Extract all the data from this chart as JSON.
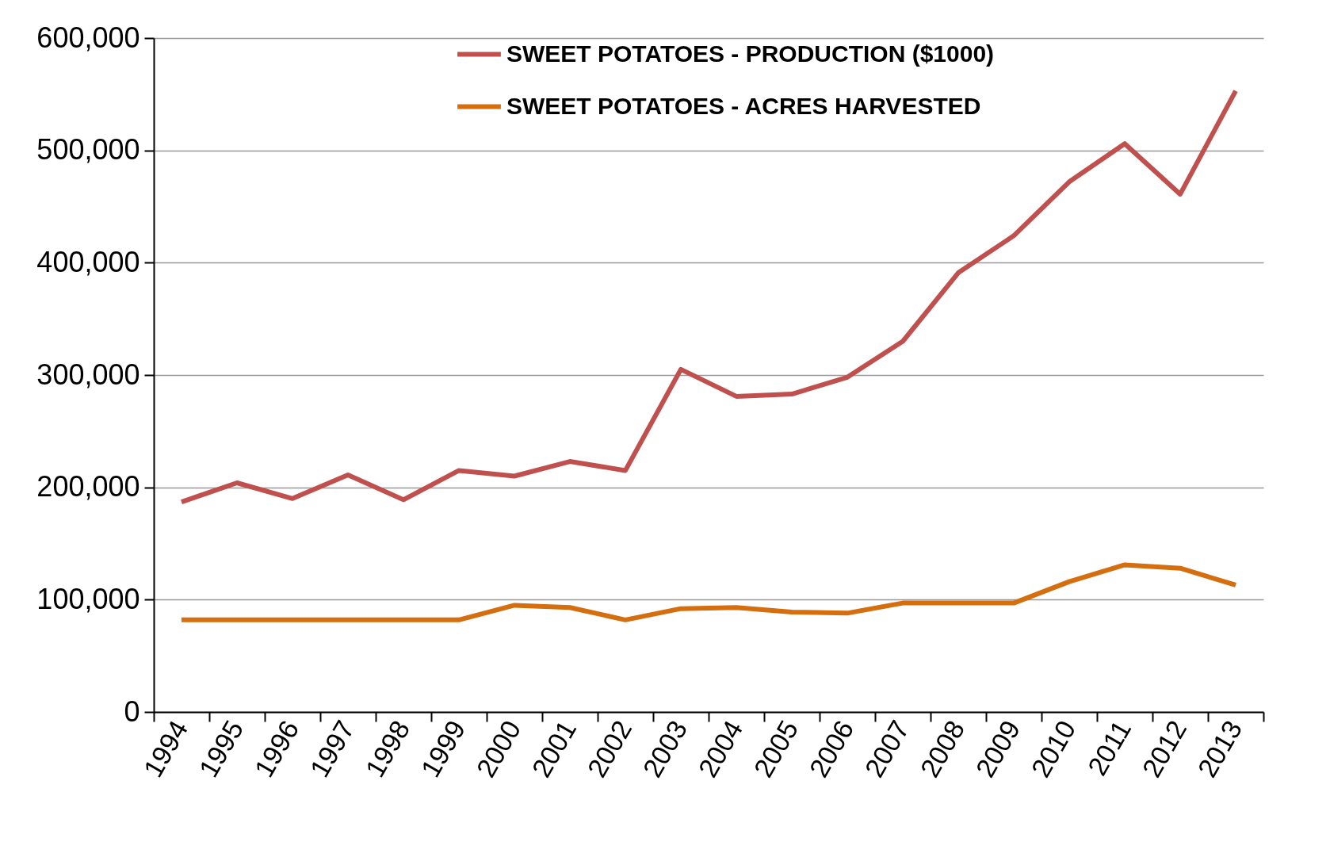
{
  "chart_data": {
    "type": "line",
    "categories": [
      "1994",
      "1995",
      "1996",
      "1997",
      "1998",
      "1999",
      "2000",
      "2001",
      "2002",
      "2003",
      "2004",
      "2005",
      "2006",
      "2007",
      "2008",
      "2009",
      "2010",
      "2011",
      "2012",
      "2013"
    ],
    "series": [
      {
        "name": "SWEET POTATOES - PRODUCTION ($1000)",
        "color": "#c0504d",
        "values": [
          187000,
          204000,
          190000,
          211000,
          189000,
          215000,
          210000,
          223000,
          215000,
          305000,
          281000,
          283000,
          298000,
          330000,
          391000,
          424000,
          472000,
          506000,
          461000,
          553000
        ]
      },
      {
        "name": "SWEET POTATOES - ACRES HARVESTED",
        "color": "#d46e0f",
        "values": [
          82000,
          82000,
          82000,
          82000,
          82000,
          82000,
          95000,
          93000,
          82000,
          92000,
          93000,
          89000,
          88000,
          97000,
          97000,
          97000,
          116000,
          131000,
          128000,
          113000
        ]
      }
    ],
    "ylim": [
      0,
      600000
    ],
    "yticks": [
      0,
      {
        "value": 100000,
        "label": "100,000"
      },
      {
        "value": 200000,
        "label": "200,000"
      },
      {
        "value": 300000,
        "label": "300,000"
      },
      {
        "value": 400000,
        "label": "400,000"
      },
      {
        "value": 500000,
        "label": "500,000"
      },
      {
        "value": 600000,
        "label": "600,000"
      }
    ],
    "grid": "y",
    "legend": "top",
    "marker": "none",
    "line_style": "solid"
  }
}
